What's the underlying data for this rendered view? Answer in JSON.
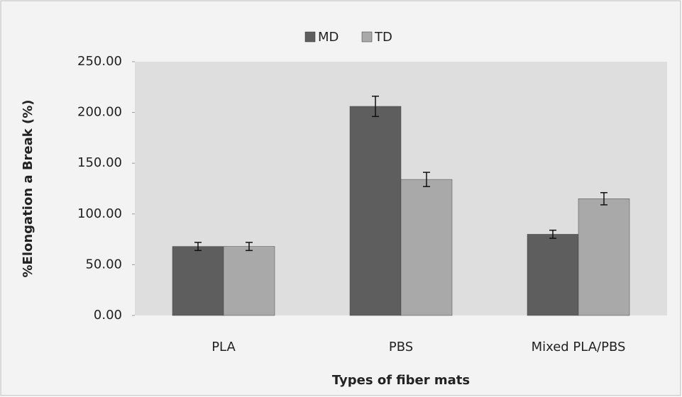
{
  "chart_data": {
    "type": "bar",
    "categories": [
      "PLA",
      "PBS",
      "Mixed PLA/PBS"
    ],
    "series": [
      {
        "name": "MD",
        "color": "#5e5e5e",
        "values": [
          68,
          206,
          80
        ],
        "errors": [
          4,
          10,
          4
        ]
      },
      {
        "name": "TD",
        "color": "#a9a9a9",
        "values": [
          68,
          134,
          115
        ],
        "errors": [
          4,
          7,
          6
        ]
      }
    ],
    "ylabel": "%Elongation a Break (%)",
    "xlabel": "Types of fiber mats",
    "ylim": [
      0,
      250
    ],
    "yticks": [
      {
        "value": 0,
        "label": "0.00"
      },
      {
        "value": 50,
        "label": "50.00"
      },
      {
        "value": 100,
        "label": "100.00"
      },
      {
        "value": 150,
        "label": "150.00"
      },
      {
        "value": 200,
        "label": "200.00"
      },
      {
        "value": 250,
        "label": "250.00"
      }
    ],
    "legend": "top"
  }
}
